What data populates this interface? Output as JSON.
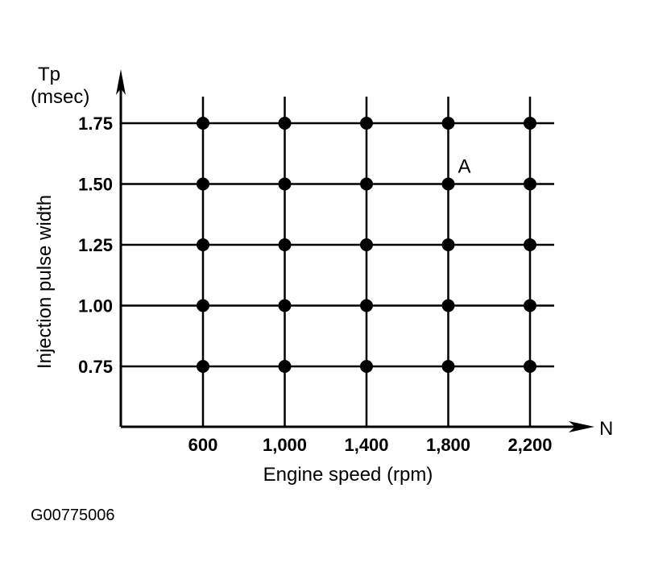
{
  "chart_data": {
    "type": "scatter",
    "ylabel": "Injection pulse width",
    "ylabel_top": "Tp",
    "yunit": "(msec)",
    "xlabel": "Engine speed (rpm)",
    "xaxis_symbol": "N",
    "x_ticks": [
      600,
      1000,
      1400,
      1800,
      2200
    ],
    "x_tick_labels": [
      "600",
      "1,000",
      "1,400",
      "1,800",
      "2,200"
    ],
    "y_ticks": [
      0.75,
      1.0,
      1.25,
      1.5,
      1.75
    ],
    "y_tick_labels": [
      "0.75",
      "1.00",
      "1.25",
      "1.50",
      "1.75"
    ],
    "grid": true,
    "points": "all combinations of x_ticks and y_ticks",
    "annotations": [
      {
        "text": "A",
        "x": 1800,
        "y": 1.5
      }
    ],
    "color": "#000000"
  },
  "figure_id": "G00775006"
}
